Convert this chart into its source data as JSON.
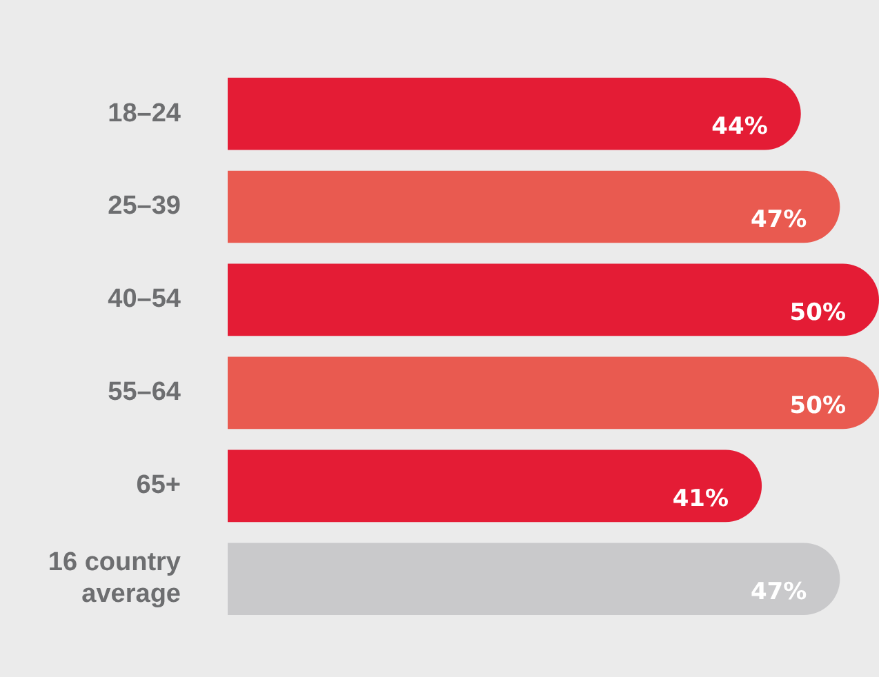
{
  "chart_data": {
    "type": "bar",
    "orientation": "horizontal",
    "categories": [
      "18–24",
      "25–39",
      "40–54",
      "55–64",
      "65+",
      "16 country average"
    ],
    "values": [
      44,
      47,
      50,
      50,
      41,
      47
    ],
    "value_labels": [
      "44%",
      "47%",
      "50%",
      "50%",
      "41%",
      "47%"
    ],
    "colors": [
      "#e41c35",
      "#e95a50",
      "#e41c35",
      "#e95a50",
      "#e41c35",
      "#c9c9cb"
    ],
    "xlim": [
      0,
      50
    ],
    "tick_labels": "y"
  }
}
